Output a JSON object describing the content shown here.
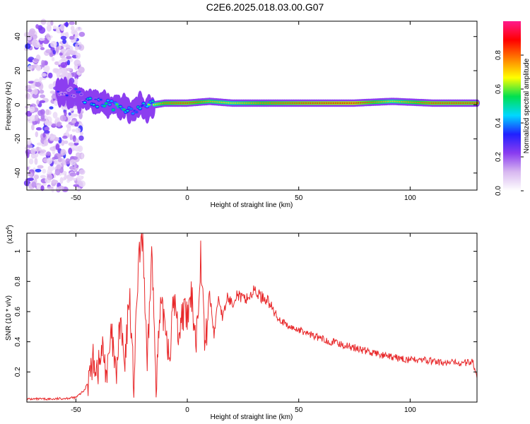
{
  "title": "C2E6.2025.018.03.00.G07",
  "chart_data": [
    {
      "type": "heatmap",
      "xlabel": "Height of straight line (km)",
      "ylabel": "Frequency (Hz)",
      "xlim": [
        -72,
        130
      ],
      "ylim": [
        -50,
        49
      ],
      "xticks": [
        -50,
        0,
        50,
        100
      ],
      "yticks": [
        -40,
        -20,
        0,
        20,
        40
      ],
      "colorbar": {
        "label": "Normalized spectral amplitude",
        "range": [
          0,
          1
        ],
        "ticks": [
          "0.0",
          "0.2",
          "0.4",
          "0.6",
          "0.8"
        ],
        "tick_values": [
          0,
          0.2,
          0.4,
          0.6,
          0.8
        ],
        "colors": [
          "#ffffff",
          "#d8b8f0",
          "#8a3cf0",
          "#2020ff",
          "#00d8ff",
          "#00e050",
          "#ffff00",
          "#ff8000",
          "#ff0000",
          "#ff1a8c"
        ]
      },
      "grid": false,
      "ridge": [
        {
          "x": -72,
          "freq": 0,
          "amp": 0.1
        },
        {
          "x": -60,
          "freq": 8,
          "amp": 0.3
        },
        {
          "x": -50,
          "freq": 7,
          "amp": 0.35
        },
        {
          "x": -45,
          "freq": 2,
          "amp": 0.45
        },
        {
          "x": -35,
          "freq": 0,
          "amp": 0.55
        },
        {
          "x": -25,
          "freq": -3,
          "amp": 0.5
        },
        {
          "x": -20,
          "freq": -1,
          "amp": 0.55
        },
        {
          "x": -10,
          "freq": 1,
          "amp": 0.8
        },
        {
          "x": 0,
          "freq": 1,
          "amp": 0.85
        },
        {
          "x": 10,
          "freq": 2,
          "amp": 0.75
        },
        {
          "x": 20,
          "freq": 1,
          "amp": 0.7
        },
        {
          "x": 35,
          "freq": 1,
          "amp": 0.8
        },
        {
          "x": 50,
          "freq": 1,
          "amp": 0.85
        },
        {
          "x": 75,
          "freq": 1,
          "amp": 0.9
        },
        {
          "x": 92,
          "freq": 2,
          "amp": 0.7
        },
        {
          "x": 110,
          "freq": 1,
          "amp": 0.85
        },
        {
          "x": 130,
          "freq": 1,
          "amp": 0.85
        }
      ]
    },
    {
      "type": "line",
      "xlabel": "Height of straight line (km)",
      "ylabel": "SNR (10 * v/v)",
      "yscale_label": "(x10",
      "yscale_exp": "4",
      "yscale_close": ")",
      "xlim": [
        -72,
        130
      ],
      "ylim": [
        0,
        1.12
      ],
      "xticks": [
        -50,
        0,
        50,
        100
      ],
      "yticks": [
        0.2,
        0.4,
        0.6,
        0.8,
        1
      ],
      "series": [
        {
          "color": "#e8292b",
          "x": [
            -72,
            -60,
            -50,
            -46,
            -44,
            -42,
            -40,
            -38,
            -36,
            -34,
            -32,
            -30,
            -28,
            -26,
            -24,
            -22,
            -20,
            -18,
            -16,
            -14,
            -12,
            -10,
            -8,
            -6,
            -4,
            -2,
            0,
            2,
            4,
            6,
            8,
            10,
            12,
            14,
            16,
            18,
            20,
            22,
            25,
            28,
            30,
            33,
            36,
            38,
            40,
            45,
            50,
            55,
            60,
            65,
            70,
            75,
            80,
            85,
            90,
            95,
            100,
            105,
            110,
            115,
            120,
            125,
            128,
            130
          ],
          "y": [
            0.02,
            0.02,
            0.03,
            0.08,
            0.18,
            0.28,
            0.22,
            0.35,
            0.18,
            0.45,
            0.15,
            0.55,
            0.2,
            0.75,
            0.1,
            0.9,
            1.12,
            0.2,
            1.0,
            0.15,
            0.6,
            0.55,
            0.3,
            0.7,
            0.45,
            0.6,
            0.55,
            0.7,
            0.4,
            0.98,
            0.35,
            0.72,
            0.45,
            0.7,
            0.55,
            0.7,
            0.65,
            0.72,
            0.68,
            0.7,
            0.74,
            0.7,
            0.68,
            0.62,
            0.57,
            0.5,
            0.48,
            0.45,
            0.42,
            0.4,
            0.38,
            0.36,
            0.34,
            0.32,
            0.3,
            0.29,
            0.28,
            0.28,
            0.27,
            0.26,
            0.26,
            0.26,
            0.27,
            0.16
          ]
        }
      ]
    }
  ]
}
